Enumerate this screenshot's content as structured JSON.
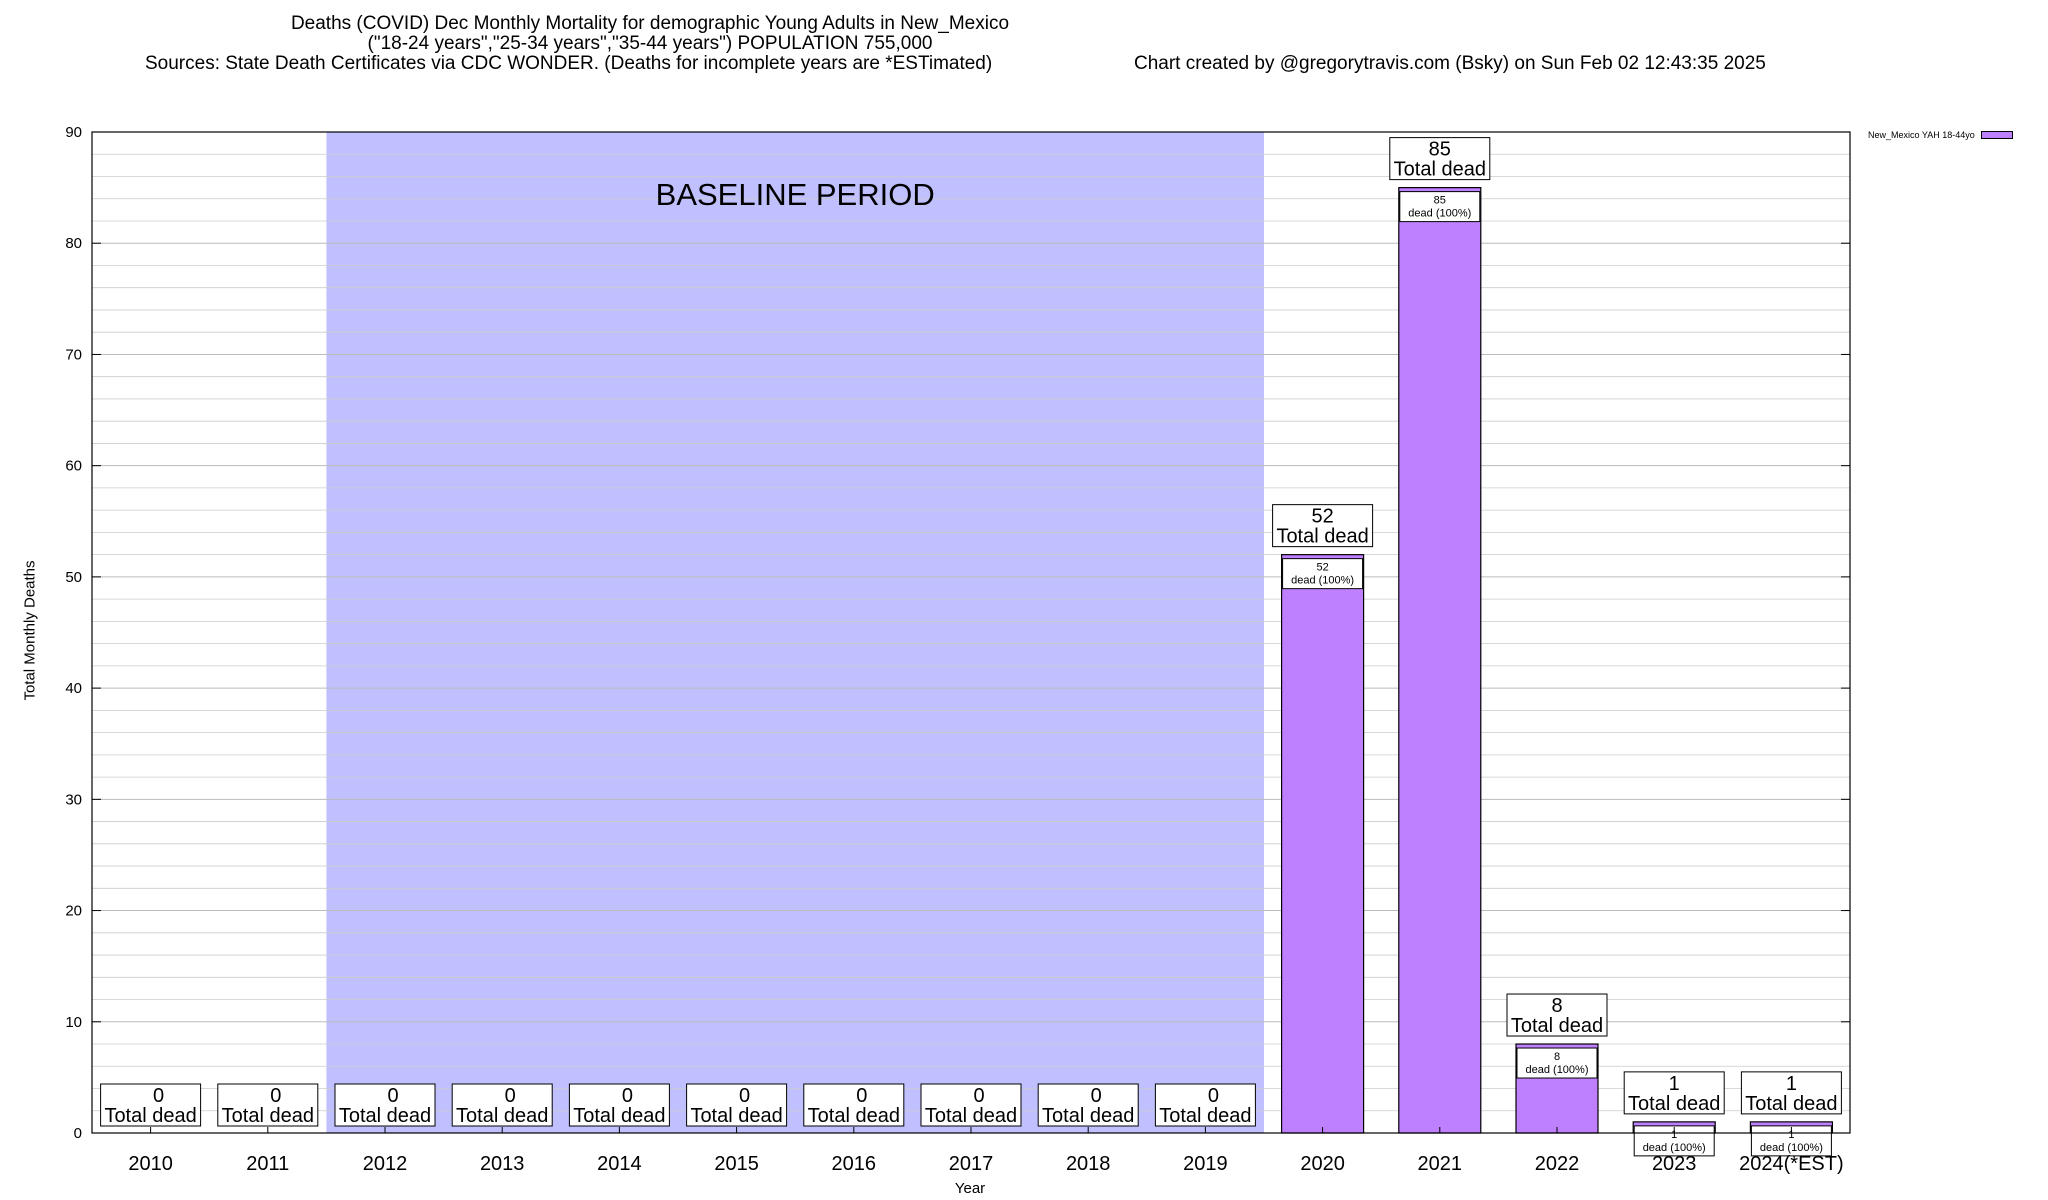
{
  "header": {
    "title_line1": "Deaths (COVID) Dec Monthly Mortality for demographic Young Adults in New_Mexico",
    "title_line2": "(\"18-24 years\",\"25-34 years\",\"35-44 years\") POPULATION 755,000",
    "sources": "Sources: State Death Certificates via CDC WONDER. (Deaths for incomplete years are *ESTimated)",
    "credit": "Chart created by @gregorytravis.com (Bsky) on Sun Feb 02 12:43:35 2025"
  },
  "chart_data": {
    "type": "bar",
    "xlabel": "Year",
    "ylabel": "Total Monthly Deaths",
    "ylim": [
      0,
      90
    ],
    "yticks": [
      0,
      10,
      20,
      30,
      40,
      50,
      60,
      70,
      80,
      90
    ],
    "grid": true,
    "legend_position": "top-right",
    "categories": [
      "2010",
      "2011",
      "2012",
      "2013",
      "2014",
      "2015",
      "2016",
      "2017",
      "2018",
      "2019",
      "2020",
      "2021",
      "2022",
      "2023",
      "2024(*EST)"
    ],
    "series": [
      {
        "name": "New_Mexico YAH 18-44yo",
        "color": "#bf80ff",
        "values": [
          0,
          0,
          0,
          0,
          0,
          0,
          0,
          0,
          0,
          0,
          52,
          85,
          8,
          1,
          1
        ]
      }
    ],
    "total_label": "Total dead",
    "segment_label_suffix": "dead (100%)",
    "annotation": "BASELINE PERIOD",
    "baseline_range": [
      "2012",
      "2019"
    ],
    "baseline_color": "#c0c0ff"
  }
}
